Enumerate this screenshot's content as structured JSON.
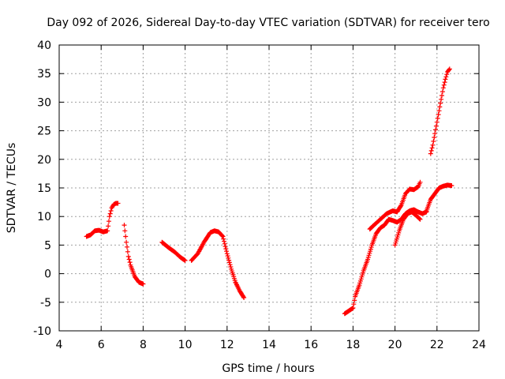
{
  "colors": {
    "series": "#ff0000",
    "grid": "#a0a0a0",
    "frame": "#000000"
  },
  "chart_data": {
    "type": "scatter",
    "title": "Day 092 of 2026, Sidereal Day-to-day VTEC variation (SDTVAR) for receiver tero",
    "xlabel": "GPS time / hours",
    "ylabel": "SDTVAR / TECUs",
    "xlim": [
      4,
      24
    ],
    "ylim": [
      -10,
      40
    ],
    "xticks": [
      4,
      6,
      8,
      10,
      12,
      14,
      16,
      18,
      20,
      22,
      24
    ],
    "yticks": [
      -10,
      -5,
      0,
      5,
      10,
      15,
      20,
      25,
      30,
      35,
      40
    ],
    "xtick_labels": [
      "4",
      "6",
      "8",
      "10",
      "12",
      "14",
      "16",
      "18",
      "20",
      "22",
      "24"
    ],
    "ytick_labels": [
      "-10",
      "-5",
      "0",
      "5",
      "10",
      "15",
      "20",
      "25",
      "30",
      "35",
      "40"
    ],
    "grid": true,
    "marker": "plus",
    "series": [
      {
        "name": "SDTVAR",
        "segments": [
          {
            "x": [
              5.3,
              5.5,
              5.7,
              5.9,
              6.1,
              6.3,
              6.4,
              6.5,
              6.6,
              6.7,
              6.8
            ],
            "y": [
              6.5,
              6.8,
              7.5,
              7.6,
              7.3,
              7.5,
              10.0,
              11.5,
              12.1,
              12.3,
              12.3
            ]
          },
          {
            "x": [
              7.1,
              7.2,
              7.3,
              7.4,
              7.6,
              7.8,
              8.0
            ],
            "y": [
              8.5,
              5.5,
              3.0,
              1.5,
              -0.5,
              -1.5,
              -1.8
            ]
          },
          {
            "x": [
              8.9,
              9.2,
              9.5,
              9.8,
              10.0
            ],
            "y": [
              5.5,
              4.6,
              3.8,
              2.8,
              2.3
            ]
          },
          {
            "x": [
              10.3,
              10.6,
              10.9,
              11.2,
              11.4,
              11.6,
              11.8,
              12.0,
              12.2,
              12.4,
              12.6,
              12.8
            ],
            "y": [
              2.3,
              3.5,
              5.5,
              7.2,
              7.5,
              7.3,
              6.5,
              3.5,
              0.8,
              -1.5,
              -3.0,
              -4.2
            ]
          },
          {
            "x": [
              17.6,
              17.8,
              18.0,
              18.1,
              18.3,
              18.5,
              18.7,
              18.9,
              19.1,
              19.3,
              19.5,
              19.7,
              19.9,
              20.1,
              20.3,
              20.5,
              20.7,
              20.9,
              21.1,
              21.3,
              21.5
            ],
            "y": [
              -7.0,
              -6.5,
              -6.0,
              -4.0,
              -2.0,
              0.5,
              2.5,
              5.0,
              7.0,
              8.0,
              8.5,
              9.5,
              9.3,
              9.0,
              9.5,
              10.5,
              11.0,
              11.2,
              10.8,
              10.5,
              10.8
            ]
          },
          {
            "x": [
              18.8,
              19.0,
              19.3,
              19.6,
              19.9,
              20.1,
              20.3,
              20.5,
              20.7,
              20.9,
              21.1,
              21.2
            ],
            "y": [
              7.8,
              8.5,
              9.5,
              10.5,
              11.0,
              10.8,
              12.0,
              14.0,
              14.8,
              14.7,
              15.2,
              16.0
            ]
          },
          {
            "x": [
              20.0,
              20.2,
              20.4,
              20.6,
              20.8,
              21.0,
              21.2
            ],
            "y": [
              5.0,
              7.5,
              9.5,
              10.5,
              10.8,
              10.2,
              9.5
            ]
          },
          {
            "x": [
              21.5,
              21.7,
              21.9,
              22.1,
              22.3,
              22.5,
              22.7
            ],
            "y": [
              11.0,
              13.0,
              14.0,
              15.0,
              15.3,
              15.5,
              15.4
            ]
          },
          {
            "x": [
              21.7,
              21.8,
              21.9,
              22.0,
              22.1,
              22.2,
              22.3,
              22.4,
              22.5,
              22.6
            ],
            "y": [
              21.0,
              22.5,
              24.5,
              26.5,
              28.5,
              30.5,
              32.5,
              34.0,
              35.3,
              35.8
            ]
          }
        ]
      }
    ]
  }
}
